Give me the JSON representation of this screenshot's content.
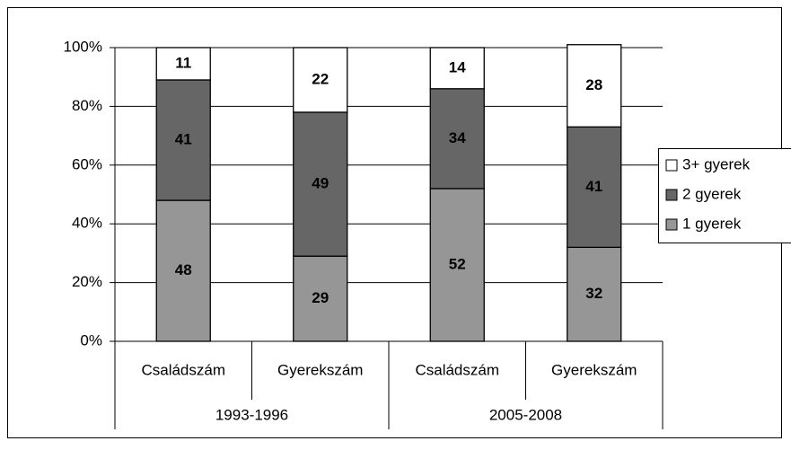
{
  "chart_data": {
    "type": "stacked-bar",
    "groups": [
      {
        "name": "1993-1996",
        "categories": [
          "Családszám",
          "Gyerekszám"
        ]
      },
      {
        "name": "2005-2008",
        "categories": [
          "Családszám",
          "Gyerekszám"
        ]
      }
    ],
    "series": [
      {
        "name": "1 gyerek",
        "color": "#969696",
        "values": [
          48,
          29,
          52,
          32
        ]
      },
      {
        "name": "2 gyerek",
        "color": "#666666",
        "values": [
          41,
          49,
          34,
          41
        ]
      },
      {
        "name": "3+ gyerek",
        "color": "#ffffff",
        "values": [
          11,
          22,
          14,
          28
        ]
      }
    ],
    "ylim": [
      0,
      100
    ],
    "yticks": [
      {
        "value": 0,
        "label": "0%"
      },
      {
        "value": 20,
        "label": "20%"
      },
      {
        "value": 40,
        "label": "40%"
      },
      {
        "value": 60,
        "label": "60%"
      },
      {
        "value": 80,
        "label": "80%"
      },
      {
        "value": 100,
        "label": "100%"
      }
    ],
    "grid": true,
    "legend": "right"
  }
}
